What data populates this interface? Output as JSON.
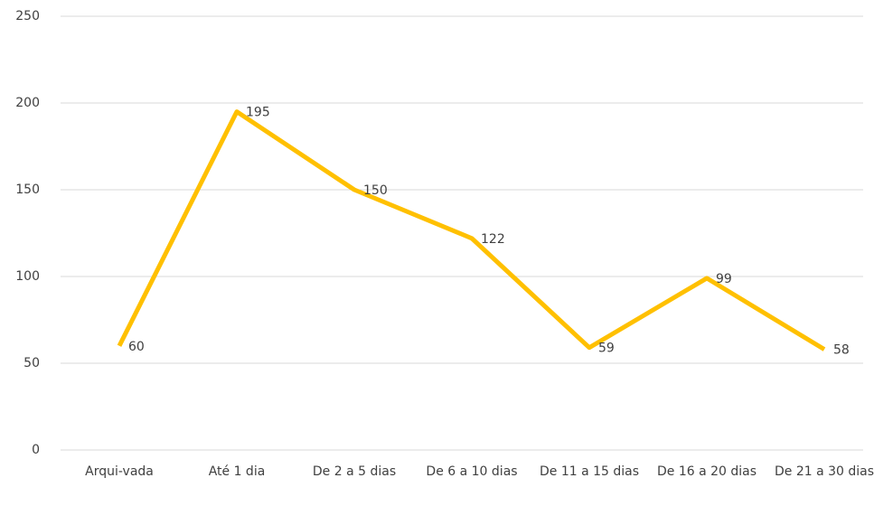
{
  "chart_data": {
    "type": "line",
    "categories": [
      "Arqui-vada",
      "Até 1 dia",
      "De 2 a 5 dias",
      "De 6 a 10 dias",
      "De 11 a 15 dias",
      "De 16 a 20 dias",
      "De 21 a 30 dias"
    ],
    "values": [
      60,
      195,
      150,
      122,
      59,
      99,
      58
    ],
    "color": "#ffc000",
    "ylim": [
      0,
      250
    ],
    "yticks": [
      0,
      50,
      100,
      150,
      200,
      250
    ],
    "grid": true
  }
}
